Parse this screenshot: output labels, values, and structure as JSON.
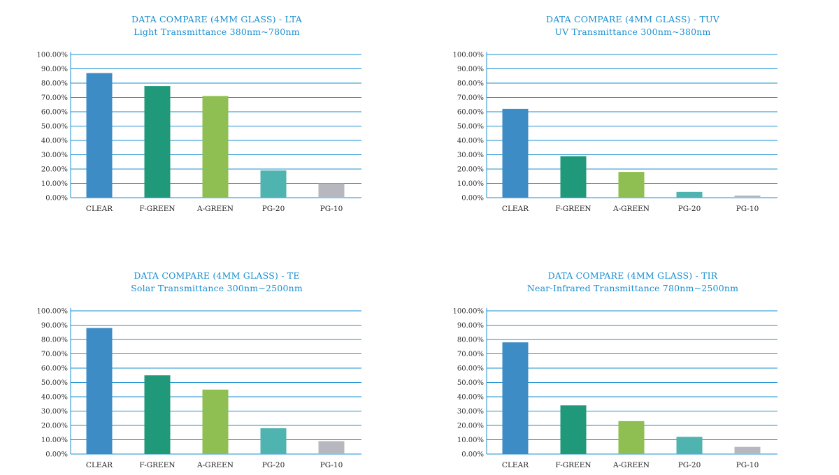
{
  "chart_data": [
    {
      "type": "bar",
      "title": "DATA COMPARE (4MM GLASS) - LTA",
      "subtitle": "Light Transmittance 380nm~780nm",
      "categories": [
        "CLEAR",
        "F-GREEN",
        "A-GREEN",
        "PG-20",
        "PG-10"
      ],
      "values": [
        87,
        78,
        71,
        19,
        10
      ],
      "ylim": [
        0,
        100
      ],
      "yticks": [
        "0.00%",
        "10.00%",
        "20.00%",
        "30.00%",
        "40.00%",
        "50.00%",
        "60.00%",
        "70.00%",
        "80.00%",
        "90.00%",
        "100.00%"
      ],
      "grid": true
    },
    {
      "type": "bar",
      "title": "DATA COMPARE (4MM GLASS) - TUV",
      "subtitle": "UV Transmittance 300nm~380nm",
      "categories": [
        "CLEAR",
        "F-GREEN",
        "A-GREEN",
        "PG-20",
        "PG-10"
      ],
      "values": [
        62,
        29,
        18,
        4,
        1.5
      ],
      "ylim": [
        0,
        100
      ],
      "yticks": [
        "0.00%",
        "10.00%",
        "20.00%",
        "30.00%",
        "40.00%",
        "50.00%",
        "60.00%",
        "70.00%",
        "80.00%",
        "90.00%",
        "100.00%"
      ],
      "grid": true
    },
    {
      "type": "bar",
      "title": "DATA COMPARE (4MM GLASS) - TE",
      "subtitle": "Solar Transmittance 300nm~2500nm",
      "categories": [
        "CLEAR",
        "F-GREEN",
        "A-GREEN",
        "PG-20",
        "PG-10"
      ],
      "values": [
        88,
        55,
        45,
        18,
        9
      ],
      "ylim": [
        0,
        100
      ],
      "yticks": [
        "0.00%",
        "10.00%",
        "20.00%",
        "30.00%",
        "40.00%",
        "50.00%",
        "60.00%",
        "70.00%",
        "80.00%",
        "90.00%",
        "100.00%"
      ],
      "grid": true
    },
    {
      "type": "bar",
      "title": "DATA COMPARE (4MM GLASS) - TIR",
      "subtitle": "Near-Infrared Transmittance 780nm~2500nm",
      "categories": [
        "CLEAR",
        "F-GREEN",
        "A-GREEN",
        "PG-20",
        "PG-10"
      ],
      "values": [
        78,
        34,
        23,
        12,
        5
      ],
      "ylim": [
        0,
        100
      ],
      "yticks": [
        "0.00%",
        "10.00%",
        "20.00%",
        "30.00%",
        "40.00%",
        "50.00%",
        "60.00%",
        "70.00%",
        "80.00%",
        "90.00%",
        "100.00%"
      ],
      "grid": true
    }
  ],
  "colors": {
    "title": "#1a8fd0",
    "grid": "#1a8fd0",
    "bars": [
      "#3d8cc6",
      "#20997a",
      "#8fbf52",
      "#4fb3b0",
      "#b7b8bf"
    ]
  }
}
